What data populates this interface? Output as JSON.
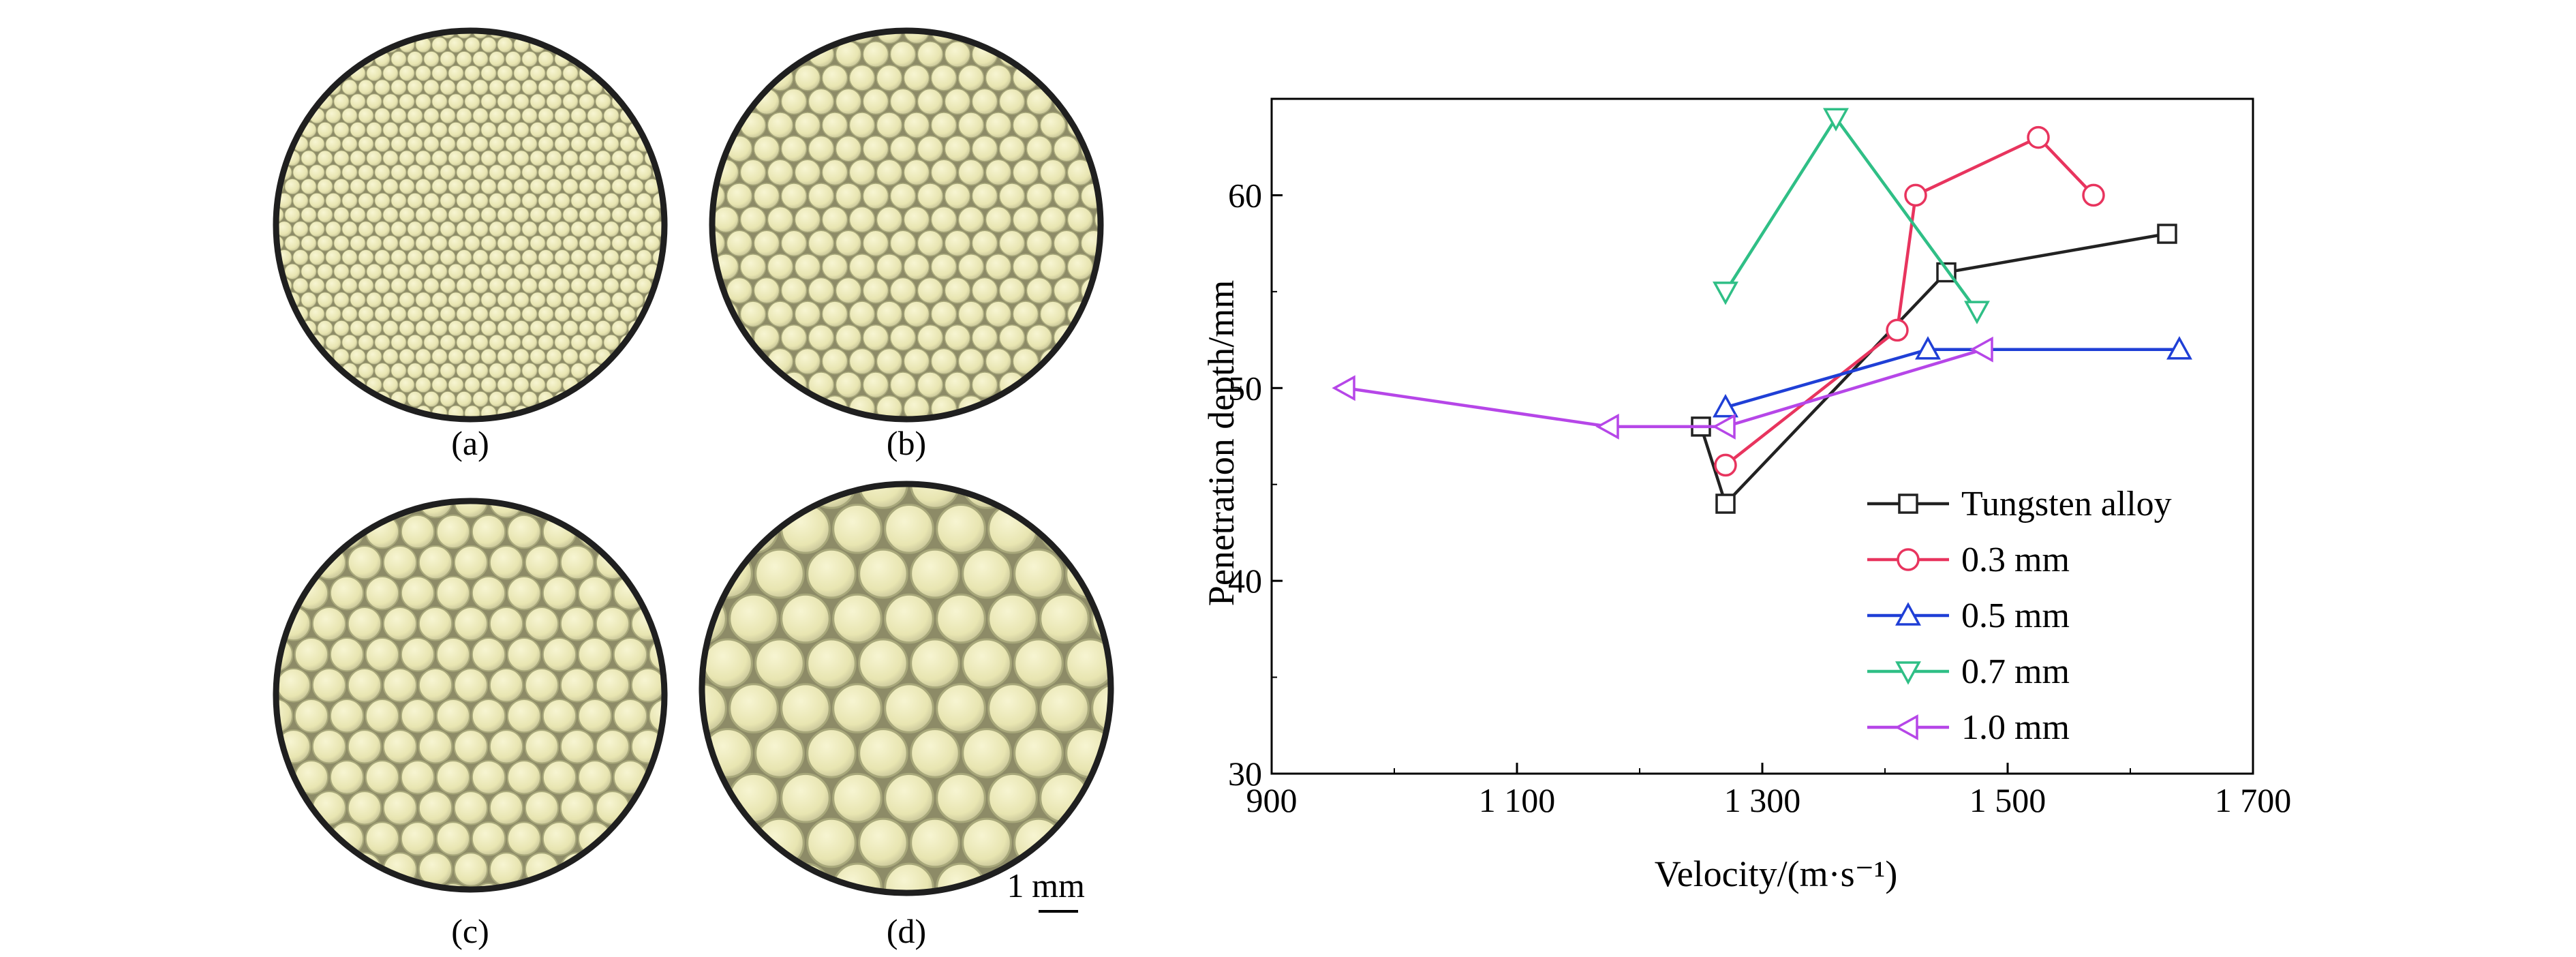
{
  "panels": [
    {
      "id": "a",
      "label": "(a)",
      "particle": "fine"
    },
    {
      "id": "b",
      "label": "(b)",
      "particle": "small"
    },
    {
      "id": "c",
      "label": "(c)",
      "particle": "medium"
    },
    {
      "id": "d",
      "label": "(d)",
      "particle": "large"
    }
  ],
  "scale_bar": {
    "label_num": "1",
    "label_unit": "mm"
  },
  "colors": {
    "sphere_fill": "#ece9b6",
    "sphere_edge": "#a7a77a",
    "disk_rim": "#1f1f1f",
    "gap": "#8d8b67"
  },
  "chart_data": {
    "type": "line",
    "title": "",
    "xlabel": "Velocity/(m·s⁻¹)",
    "ylabel": "Penetration depth/mm",
    "xlim": [
      900,
      1700
    ],
    "ylim": [
      30,
      65
    ],
    "xticks": [
      900,
      1100,
      1300,
      1500,
      1700
    ],
    "xtick_labels": [
      "900",
      "1 100",
      "1 300",
      "1 500",
      "1 700"
    ],
    "yticks": [
      30,
      40,
      50,
      60
    ],
    "ytick_labels": [
      "30",
      "40",
      "50",
      "60"
    ],
    "grid": false,
    "legend_position": "lower-right",
    "series": [
      {
        "name": "Tungsten alloy",
        "color": "#222222",
        "marker": "square",
        "x": [
          1250,
          1270,
          1450,
          1630
        ],
        "y": [
          48,
          44,
          56,
          58
        ]
      },
      {
        "name": "0.3 mm",
        "color": "#e8345e",
        "marker": "circle",
        "x": [
          1270,
          1410,
          1425,
          1525,
          1570
        ],
        "y": [
          46,
          53,
          60,
          63,
          60
        ]
      },
      {
        "name": "0.5 mm",
        "color": "#1f3fd6",
        "marker": "triangle-up",
        "x": [
          1270,
          1435,
          1640
        ],
        "y": [
          49,
          52,
          52
        ]
      },
      {
        "name": "0.7 mm",
        "color": "#2fbf86",
        "marker": "triangle-down",
        "x": [
          1270,
          1360,
          1475
        ],
        "y": [
          55,
          64,
          54
        ]
      },
      {
        "name": "1.0 mm",
        "color": "#b646e8",
        "marker": "triangle-left",
        "x": [
          960,
          1175,
          1270,
          1480
        ],
        "y": [
          50,
          48,
          48,
          52
        ]
      }
    ]
  }
}
